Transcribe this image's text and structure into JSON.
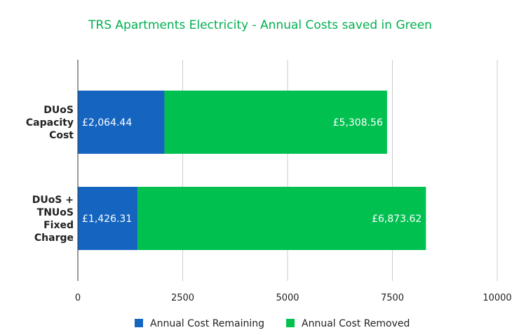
{
  "chart_data": {
    "type": "bar",
    "orientation": "horizontal",
    "stacked": true,
    "title": "TRS Apartments Electricity - Annual Costs saved in Green",
    "categories": [
      [
        "DUoS",
        "Capacity",
        "Cost"
      ],
      [
        "DUoS +",
        "TNUoS",
        "Fixed",
        "Charge"
      ]
    ],
    "series": [
      {
        "name": "Annual Cost Remaining",
        "color": "#1565c0",
        "values": [
          2064.44,
          1426.31
        ],
        "labels": [
          "£2,064.44",
          "£1,426.31"
        ]
      },
      {
        "name": "Annual Cost Removed",
        "color": "#00c050",
        "values": [
          5308.56,
          6873.62
        ],
        "labels": [
          "£5,308.56",
          "£6,873.62"
        ]
      }
    ],
    "xlim": [
      0,
      10000
    ],
    "xticks": [
      "0",
      "2500",
      "5000",
      "7500",
      "10000"
    ],
    "xtick_values": [
      0,
      2500,
      5000,
      7500,
      10000
    ],
    "grid": true,
    "legend_position": "bottom"
  },
  "colors": {
    "title": "#00b050",
    "grid": "#cccccc",
    "axis": "#333333"
  }
}
